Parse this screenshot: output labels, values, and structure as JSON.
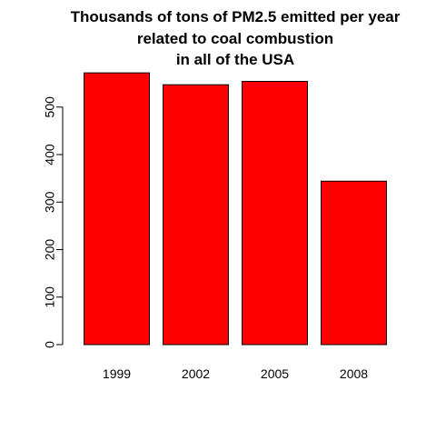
{
  "chart_data": {
    "type": "bar",
    "title_lines": [
      "Thousands of tons of PM2.5 emitted per year",
      "related to coal combustion",
      "in all of the USA"
    ],
    "categories": [
      "1999",
      "2002",
      "2005",
      "2008"
    ],
    "values": [
      572,
      547,
      554,
      344
    ],
    "xlabel": "",
    "ylabel": "",
    "ylim": [
      0,
      600
    ],
    "yticks": [
      0,
      100,
      200,
      300,
      400,
      500
    ],
    "ytick_labels": [
      "0",
      "100",
      "200",
      "300",
      "400",
      "500"
    ],
    "grid": false,
    "legend": "none",
    "colors": {
      "bar_fill": "#ff0000",
      "bar_stroke": "#000000",
      "axis": "#000000",
      "background": "#ffffff"
    }
  }
}
